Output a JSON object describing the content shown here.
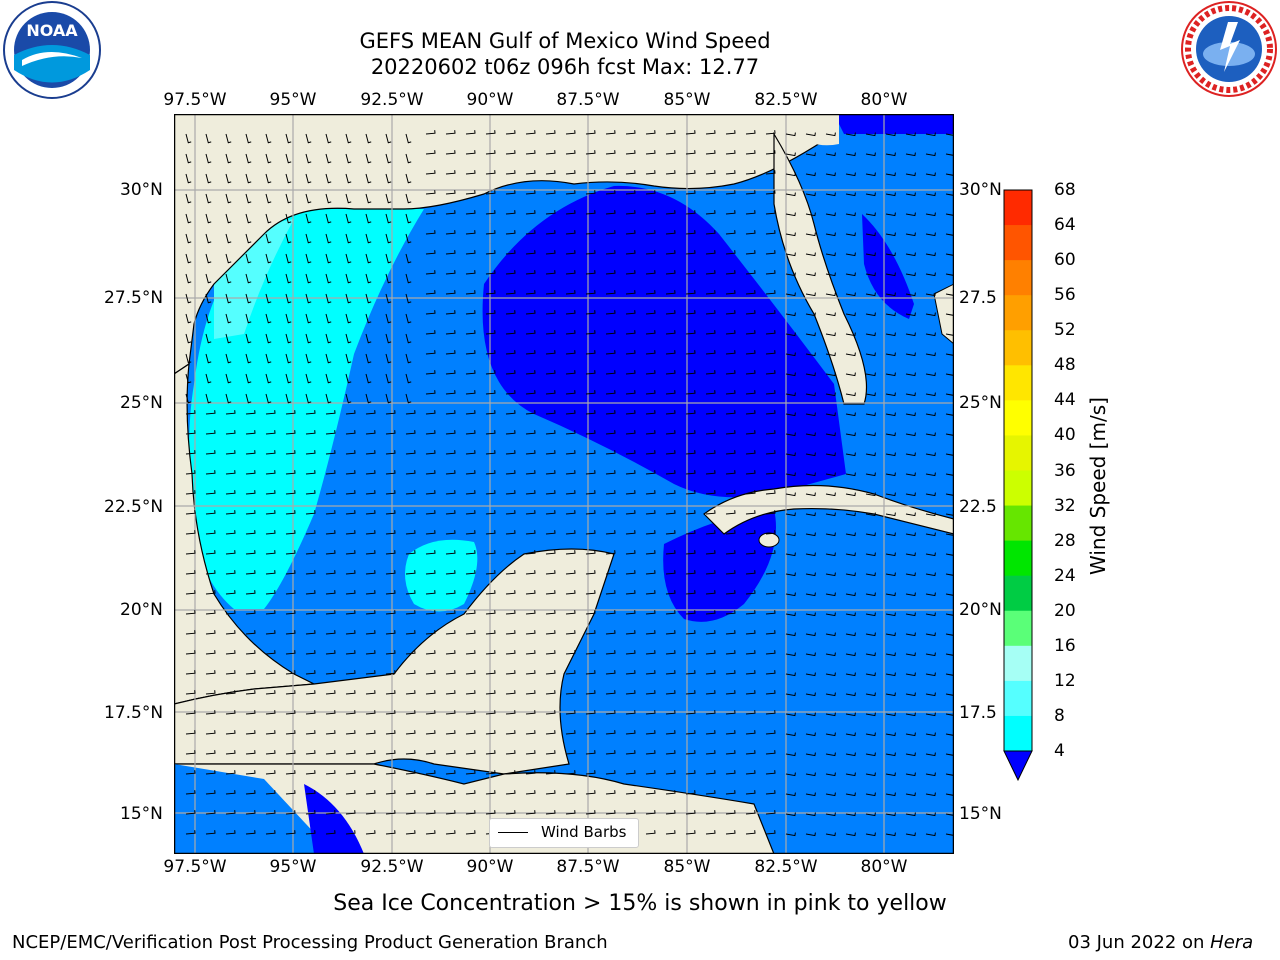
{
  "title": {
    "line1": "GEFS MEAN Gulf of Mexico Wind Speed",
    "line2": "20220602 t06z 096h fcst   Max: 12.77"
  },
  "axes": {
    "lon_ticks": [
      "97.5°W",
      "95°W",
      "92.5°W",
      "90°W",
      "87.5°W",
      "85°W",
      "82.5°W",
      "80°W"
    ],
    "lat_ticks_left": [
      "30°N",
      "27.5°N",
      "25°N",
      "22.5°N",
      "20°N",
      "17.5°N",
      "15°N"
    ],
    "lat_ticks_right": [
      "30°N",
      "27.5",
      "25°N",
      "22.5",
      "20°N",
      "17.5",
      "15°N"
    ]
  },
  "colorbar": {
    "title": "Wind Speed [m/s]",
    "ticks": [
      "68",
      "64",
      "60",
      "56",
      "52",
      "48",
      "44",
      "40",
      "36",
      "32",
      "28",
      "24",
      "20",
      "16",
      "12",
      "8",
      "4"
    ],
    "colors": [
      "#ff0000",
      "#ff2a00",
      "#ff5500",
      "#ff8000",
      "#ff9f00",
      "#ffbf00",
      "#ffe600",
      "#ffff00",
      "#e6f500",
      "#ccff00",
      "#66e600",
      "#00e600",
      "#00cc44",
      "#5aff78",
      "#a6fff5",
      "#55ffff",
      "#00ffff",
      "#0080ff",
      "#0000ff"
    ]
  },
  "legend": {
    "label": "Wind Barbs"
  },
  "map": {
    "ocean_colors": {
      "light": "#00ffff",
      "pale": "#55ffff",
      "mid": "#0080ff",
      "dark": "#0000ff",
      "land": "#efeddc"
    }
  },
  "logos": {
    "left": "NOAA",
    "right": "NATIONAL WEATHER SERVICE"
  },
  "caption": "Sea Ice Concentration > 15% is shown in pink to yellow",
  "footer": {
    "left": "NCEP/EMC/Verification Post Processing Product Generation Branch",
    "right_date": "03 Jun 2022 on ",
    "right_host": "Hera"
  }
}
